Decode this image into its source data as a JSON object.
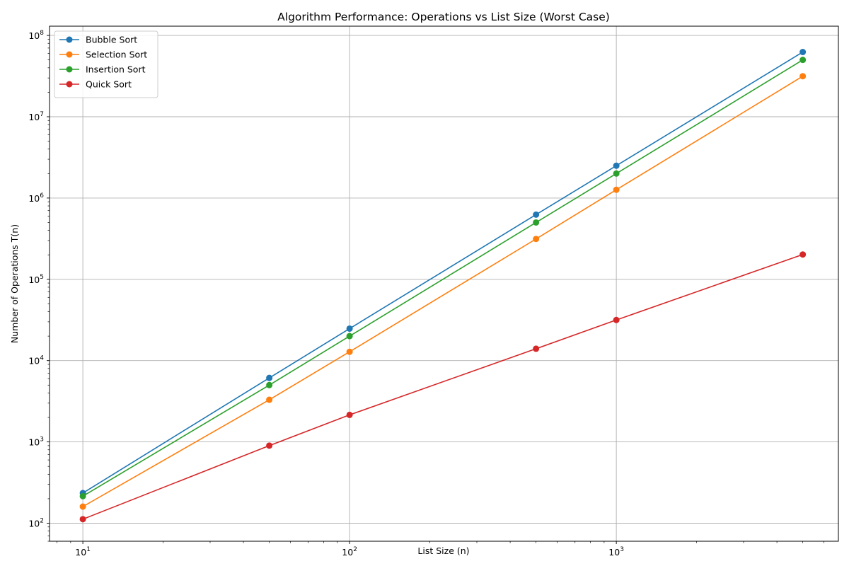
{
  "chart_data": {
    "type": "line",
    "title": "Algorithm Performance: Operations vs List Size (Worst Case)",
    "xlabel": "List Size (n)",
    "ylabel": "Number of Operations T(n)",
    "xscale": "log",
    "yscale": "log",
    "xlim": [
      7.5,
      6800
    ],
    "ylim": [
      60,
      130000000
    ],
    "grid": true,
    "legend_position": "top-left",
    "x_ticks": [
      {
        "value": 10,
        "base": "10",
        "exp": "1"
      },
      {
        "value": 100,
        "base": "10",
        "exp": "2"
      },
      {
        "value": 1000,
        "base": "10",
        "exp": "3"
      }
    ],
    "y_ticks": [
      {
        "value": 100,
        "base": "10",
        "exp": "2"
      },
      {
        "value": 1000,
        "base": "10",
        "exp": "3"
      },
      {
        "value": 10000,
        "base": "10",
        "exp": "4"
      },
      {
        "value": 100000,
        "base": "10",
        "exp": "5"
      },
      {
        "value": 1000000,
        "base": "10",
        "exp": "6"
      },
      {
        "value": 10000000,
        "base": "10",
        "exp": "7"
      },
      {
        "value": 100000000,
        "base": "10",
        "exp": "8"
      }
    ],
    "x": [
      10,
      50,
      100,
      500,
      1000,
      5000
    ],
    "series": [
      {
        "name": "Bubble Sort",
        "color": "#1f77b4",
        "values": [
          235,
          6125,
          24750,
          624750,
          2497500,
          62487500
        ]
      },
      {
        "name": "Selection Sort",
        "color": "#ff7f0e",
        "values": [
          160,
          3300,
          12850,
          313700,
          1263500,
          31500000
        ]
      },
      {
        "name": "Insertion Sort",
        "color": "#2ca02c",
        "values": [
          215,
          5000,
          20000,
          500000,
          2000000,
          50000000
        ]
      },
      {
        "name": "Quick Sort",
        "color": "#d62728",
        "values": [
          112,
          900,
          2150,
          14000,
          31600,
          202000
        ]
      }
    ]
  }
}
